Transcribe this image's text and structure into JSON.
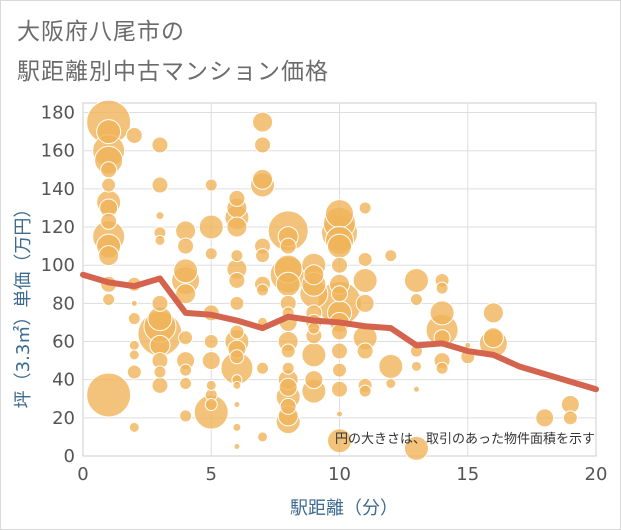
{
  "title_line1": "大阪府八尾市の",
  "title_line2": "駅距離別中古マンション価格",
  "chart_data": {
    "type": "scatter",
    "title": "大阪府八尾市の 駅距離別中古マンション価格",
    "xlabel": "駅距離（分）",
    "ylabel": "坪（3.3㎡）単価（万円）",
    "xlim": [
      0,
      20
    ],
    "ylim": [
      0,
      185
    ],
    "xticks": [
      0,
      5,
      10,
      15,
      20
    ],
    "yticks": [
      0,
      20,
      40,
      60,
      80,
      100,
      120,
      140,
      160,
      180
    ],
    "grid": true,
    "annotation": "円の大きさは、取引のあった物件面積を示す",
    "colors": {
      "bubble": "#f0b45a",
      "bubble_stroke": "#ffffff",
      "trend": "#d4644e",
      "grid": "#dddddd"
    },
    "series": [
      {
        "type": "bubble",
        "points": [
          {
            "x": 1,
            "y": 175,
            "s": 22
          },
          {
            "x": 1,
            "y": 170,
            "s": 12
          },
          {
            "x": 1,
            "y": 160,
            "s": 16
          },
          {
            "x": 1,
            "y": 155,
            "s": 14
          },
          {
            "x": 1,
            "y": 150,
            "s": 8
          },
          {
            "x": 1,
            "y": 142,
            "s": 7
          },
          {
            "x": 1,
            "y": 133,
            "s": 12
          },
          {
            "x": 1,
            "y": 130,
            "s": 9
          },
          {
            "x": 1,
            "y": 123,
            "s": 8
          },
          {
            "x": 1,
            "y": 115,
            "s": 16
          },
          {
            "x": 1,
            "y": 110,
            "s": 12
          },
          {
            "x": 1,
            "y": 105,
            "s": 10
          },
          {
            "x": 1,
            "y": 90,
            "s": 8
          },
          {
            "x": 1,
            "y": 82,
            "s": 6
          },
          {
            "x": 1,
            "y": 32,
            "s": 22
          },
          {
            "x": 2,
            "y": 168,
            "s": 8
          },
          {
            "x": 2,
            "y": 90,
            "s": 7
          },
          {
            "x": 2,
            "y": 80,
            "s": 3
          },
          {
            "x": 2,
            "y": 72,
            "s": 6
          },
          {
            "x": 2,
            "y": 58,
            "s": 5
          },
          {
            "x": 2,
            "y": 53,
            "s": 5
          },
          {
            "x": 2,
            "y": 44,
            "s": 7
          },
          {
            "x": 2,
            "y": 15,
            "s": 5
          },
          {
            "x": 3,
            "y": 163,
            "s": 8
          },
          {
            "x": 3,
            "y": 142,
            "s": 8
          },
          {
            "x": 3,
            "y": 126,
            "s": 4
          },
          {
            "x": 3,
            "y": 117,
            "s": 6
          },
          {
            "x": 3,
            "y": 113,
            "s": 5
          },
          {
            "x": 3,
            "y": 80,
            "s": 8
          },
          {
            "x": 3,
            "y": 72,
            "s": 12
          },
          {
            "x": 3,
            "y": 68,
            "s": 16
          },
          {
            "x": 3,
            "y": 64,
            "s": 22
          },
          {
            "x": 3,
            "y": 58,
            "s": 10
          },
          {
            "x": 3,
            "y": 50,
            "s": 8
          },
          {
            "x": 3,
            "y": 44,
            "s": 6
          },
          {
            "x": 3,
            "y": 37,
            "s": 8
          },
          {
            "x": 4,
            "y": 118,
            "s": 10
          },
          {
            "x": 4,
            "y": 110,
            "s": 8
          },
          {
            "x": 4,
            "y": 97,
            "s": 12
          },
          {
            "x": 4,
            "y": 92,
            "s": 14
          },
          {
            "x": 4,
            "y": 85,
            "s": 10
          },
          {
            "x": 4,
            "y": 62,
            "s": 7
          },
          {
            "x": 4,
            "y": 50,
            "s": 9
          },
          {
            "x": 4,
            "y": 45,
            "s": 6
          },
          {
            "x": 4,
            "y": 38,
            "s": 6
          },
          {
            "x": 4,
            "y": 21,
            "s": 6
          },
          {
            "x": 5,
            "y": 142,
            "s": 6
          },
          {
            "x": 5,
            "y": 120,
            "s": 12
          },
          {
            "x": 5,
            "y": 106,
            "s": 6
          },
          {
            "x": 5,
            "y": 75,
            "s": 8
          },
          {
            "x": 5,
            "y": 60,
            "s": 7
          },
          {
            "x": 5,
            "y": 50,
            "s": 9
          },
          {
            "x": 5,
            "y": 37,
            "s": 5
          },
          {
            "x": 5,
            "y": 32,
            "s": 6
          },
          {
            "x": 5,
            "y": 27,
            "s": 6
          },
          {
            "x": 5,
            "y": 23,
            "s": 17
          },
          {
            "x": 6,
            "y": 135,
            "s": 8
          },
          {
            "x": 6,
            "y": 130,
            "s": 10
          },
          {
            "x": 6,
            "y": 125,
            "s": 12
          },
          {
            "x": 6,
            "y": 120,
            "s": 10
          },
          {
            "x": 6,
            "y": 105,
            "s": 6
          },
          {
            "x": 6,
            "y": 98,
            "s": 10
          },
          {
            "x": 6,
            "y": 92,
            "s": 8
          },
          {
            "x": 6,
            "y": 80,
            "s": 7
          },
          {
            "x": 6,
            "y": 65,
            "s": 7
          },
          {
            "x": 6,
            "y": 60,
            "s": 12
          },
          {
            "x": 6,
            "y": 56,
            "s": 9
          },
          {
            "x": 6,
            "y": 52,
            "s": 7
          },
          {
            "x": 6,
            "y": 46,
            "s": 16
          },
          {
            "x": 6,
            "y": 40,
            "s": 5
          },
          {
            "x": 6,
            "y": 37,
            "s": 4
          },
          {
            "x": 6,
            "y": 27,
            "s": 3
          },
          {
            "x": 6,
            "y": 15,
            "s": 4
          },
          {
            "x": 6,
            "y": 5,
            "s": 3
          },
          {
            "x": 7,
            "y": 175,
            "s": 10
          },
          {
            "x": 7,
            "y": 163,
            "s": 8
          },
          {
            "x": 7,
            "y": 145,
            "s": 10
          },
          {
            "x": 7,
            "y": 142,
            "s": 12
          },
          {
            "x": 7,
            "y": 110,
            "s": 8
          },
          {
            "x": 7,
            "y": 105,
            "s": 7
          },
          {
            "x": 7,
            "y": 90,
            "s": 8
          },
          {
            "x": 7,
            "y": 87,
            "s": 6
          },
          {
            "x": 7,
            "y": 70,
            "s": 5
          },
          {
            "x": 7,
            "y": 46,
            "s": 6
          },
          {
            "x": 7,
            "y": 10,
            "s": 5
          },
          {
            "x": 8,
            "y": 118,
            "s": 20
          },
          {
            "x": 8,
            "y": 115,
            "s": 10
          },
          {
            "x": 8,
            "y": 110,
            "s": 8
          },
          {
            "x": 8,
            "y": 98,
            "s": 14
          },
          {
            "x": 8,
            "y": 95,
            "s": 18
          },
          {
            "x": 8,
            "y": 90,
            "s": 12
          },
          {
            "x": 8,
            "y": 80,
            "s": 8
          },
          {
            "x": 8,
            "y": 75,
            "s": 6
          },
          {
            "x": 8,
            "y": 70,
            "s": 9
          },
          {
            "x": 8,
            "y": 60,
            "s": 10
          },
          {
            "x": 8,
            "y": 55,
            "s": 7
          },
          {
            "x": 8,
            "y": 46,
            "s": 6
          },
          {
            "x": 8,
            "y": 40,
            "s": 10
          },
          {
            "x": 8,
            "y": 36,
            "s": 9
          },
          {
            "x": 8,
            "y": 31,
            "s": 12
          },
          {
            "x": 8,
            "y": 26,
            "s": 8
          },
          {
            "x": 8,
            "y": 21,
            "s": 10
          },
          {
            "x": 8,
            "y": 18,
            "s": 12
          },
          {
            "x": 9,
            "y": 100,
            "s": 12
          },
          {
            "x": 9,
            "y": 95,
            "s": 10
          },
          {
            "x": 9,
            "y": 90,
            "s": 12
          },
          {
            "x": 9,
            "y": 85,
            "s": 14
          },
          {
            "x": 9,
            "y": 75,
            "s": 8
          },
          {
            "x": 9,
            "y": 70,
            "s": 8
          },
          {
            "x": 9,
            "y": 67,
            "s": 6
          },
          {
            "x": 9,
            "y": 63,
            "s": 8
          },
          {
            "x": 9,
            "y": 53,
            "s": 12
          },
          {
            "x": 9,
            "y": 40,
            "s": 9
          },
          {
            "x": 9,
            "y": 34,
            "s": 12
          },
          {
            "x": 10,
            "y": 127,
            "s": 14
          },
          {
            "x": 10,
            "y": 122,
            "s": 16
          },
          {
            "x": 10,
            "y": 117,
            "s": 18
          },
          {
            "x": 10,
            "y": 113,
            "s": 14
          },
          {
            "x": 10,
            "y": 110,
            "s": 12
          },
          {
            "x": 10,
            "y": 100,
            "s": 8
          },
          {
            "x": 10,
            "y": 90,
            "s": 10
          },
          {
            "x": 10,
            "y": 85,
            "s": 8
          },
          {
            "x": 10,
            "y": 80,
            "s": 22
          },
          {
            "x": 10,
            "y": 75,
            "s": 12
          },
          {
            "x": 10,
            "y": 70,
            "s": 10
          },
          {
            "x": 10,
            "y": 65,
            "s": 8
          },
          {
            "x": 10,
            "y": 55,
            "s": 8
          },
          {
            "x": 10,
            "y": 45,
            "s": 7
          },
          {
            "x": 10,
            "y": 35,
            "s": 8
          },
          {
            "x": 10,
            "y": 22,
            "s": 3
          },
          {
            "x": 10,
            "y": 8,
            "s": 12
          },
          {
            "x": 11,
            "y": 130,
            "s": 6
          },
          {
            "x": 11,
            "y": 103,
            "s": 7
          },
          {
            "x": 11,
            "y": 92,
            "s": 12
          },
          {
            "x": 11,
            "y": 80,
            "s": 9
          },
          {
            "x": 11,
            "y": 62,
            "s": 12
          },
          {
            "x": 11,
            "y": 55,
            "s": 8
          },
          {
            "x": 11,
            "y": 37,
            "s": 7
          },
          {
            "x": 11,
            "y": 34,
            "s": 6
          },
          {
            "x": 12,
            "y": 105,
            "s": 6
          },
          {
            "x": 12,
            "y": 47,
            "s": 12
          },
          {
            "x": 12,
            "y": 38,
            "s": 5
          },
          {
            "x": 13,
            "y": 92,
            "s": 12
          },
          {
            "x": 13,
            "y": 82,
            "s": 6
          },
          {
            "x": 13,
            "y": 55,
            "s": 6
          },
          {
            "x": 13,
            "y": 47,
            "s": 5
          },
          {
            "x": 13,
            "y": 35,
            "s": 3
          },
          {
            "x": 13,
            "y": 4,
            "s": 12
          },
          {
            "x": 14,
            "y": 92,
            "s": 7
          },
          {
            "x": 14,
            "y": 88,
            "s": 6
          },
          {
            "x": 14,
            "y": 75,
            "s": 12
          },
          {
            "x": 14,
            "y": 66,
            "s": 16
          },
          {
            "x": 14,
            "y": 62,
            "s": 8
          },
          {
            "x": 14,
            "y": 50,
            "s": 8
          },
          {
            "x": 14,
            "y": 46,
            "s": 6
          },
          {
            "x": 15,
            "y": 58,
            "s": 3
          },
          {
            "x": 15,
            "y": 52,
            "s": 7
          },
          {
            "x": 16,
            "y": 75,
            "s": 10
          },
          {
            "x": 16,
            "y": 62,
            "s": 10
          },
          {
            "x": 16,
            "y": 59,
            "s": 14
          },
          {
            "x": 18,
            "y": 20,
            "s": 9
          },
          {
            "x": 19,
            "y": 27,
            "s": 9
          },
          {
            "x": 19,
            "y": 20,
            "s": 7
          }
        ]
      },
      {
        "type": "line",
        "x": [
          0,
          1,
          2,
          3,
          4,
          5,
          6,
          7,
          8,
          9,
          10,
          11,
          12,
          13,
          14,
          15,
          16,
          17,
          18,
          19,
          20
        ],
        "y": [
          95,
          91,
          89,
          93,
          75,
          74,
          71,
          67,
          73,
          71,
          70,
          68,
          67,
          58,
          59,
          55,
          53,
          47,
          43,
          39,
          35
        ]
      }
    ]
  }
}
